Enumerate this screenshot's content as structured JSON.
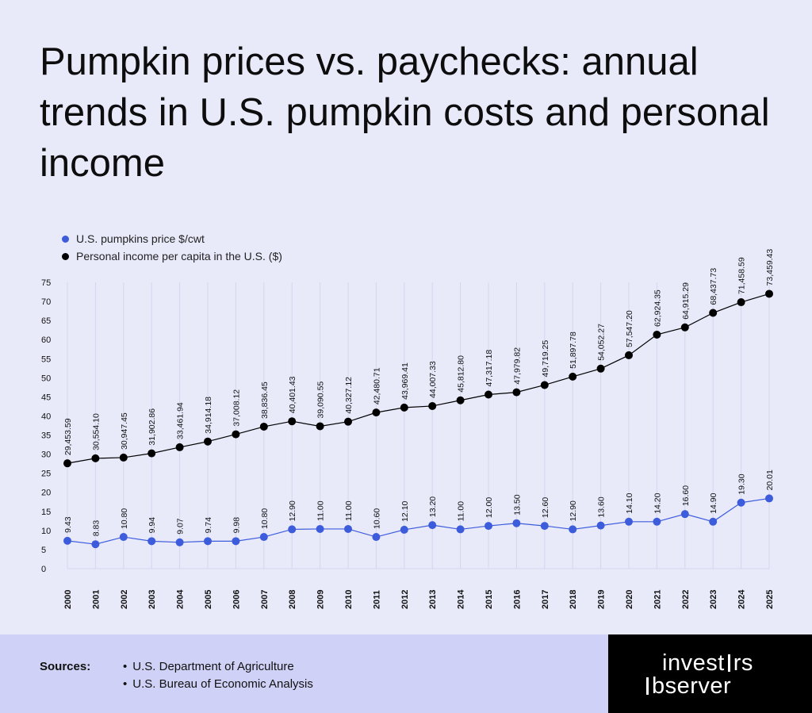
{
  "title": "Pumpkin prices vs. paychecks: annual trends in U.S. pumpkin costs and personal income",
  "colors": {
    "background": "#e8eafa",
    "pumpkin": "#3d5cdc",
    "income": "#000000",
    "footer": "#cfd2f6",
    "brand_bg": "#000000"
  },
  "footer": {
    "sources_label": "Sources:",
    "sources": [
      "U.S. Department of Agriculture",
      "U.S. Bureau of Economic Analysis"
    ]
  },
  "brand": {
    "line1_a": "invest",
    "line1_b": "rs",
    "line2_a": "",
    "line2_b": "bserver"
  },
  "chart_data": {
    "type": "line",
    "x": [
      "2000",
      "2001",
      "2002",
      "2003",
      "2004",
      "2005",
      "2006",
      "2007",
      "2008",
      "2009",
      "2010",
      "2011",
      "2012",
      "2013",
      "2014",
      "2015",
      "2016",
      "2017",
      "2018",
      "2019",
      "2020",
      "2021",
      "2022",
      "2023",
      "2024",
      "2025"
    ],
    "ylim": [
      0,
      75
    ],
    "yticks": [
      0,
      5,
      10,
      15,
      20,
      25,
      30,
      35,
      40,
      45,
      50,
      55,
      60,
      65,
      70,
      75
    ],
    "legend_position": "top-left",
    "grid": "vertical",
    "series": [
      {
        "name": "U.S. pumpkins price $/cwt",
        "color": "#3d5cdc",
        "y_plotted": [
          7.3,
          6.4,
          8.3,
          7.2,
          6.9,
          7.2,
          7.2,
          8.3,
          10.3,
          10.4,
          10.4,
          8.3,
          10.2,
          11.4,
          10.3,
          11.2,
          11.9,
          11.2,
          10.3,
          11.3,
          12.3,
          12.3,
          14.3,
          12.3,
          17.3,
          18.4
        ],
        "labels": [
          "9.43",
          "8.83",
          "10.80",
          "9.94",
          "9.07",
          "9.74",
          "9.98",
          "10.80",
          "12.90",
          "11.00",
          "11.00",
          "10.60",
          "12.10",
          "13.20",
          "11.00",
          "12.00",
          "13.50",
          "12.60",
          "12.90",
          "13.60",
          "14.10",
          "14.20",
          "16.60",
          "14.90",
          "19.30",
          "20.01"
        ]
      },
      {
        "name": "Personal income per capita in the U.S. ($)",
        "color": "#000000",
        "y_plotted": [
          27.6,
          28.9,
          29.1,
          30.2,
          31.8,
          33.3,
          35.2,
          37.2,
          38.6,
          37.3,
          38.5,
          40.9,
          42.2,
          42.6,
          44.1,
          45.6,
          46.2,
          48.1,
          50.3,
          52.4,
          55.9,
          61.3,
          63.2,
          67.0,
          69.8,
          72.0
        ],
        "labels": [
          "29,453.59",
          "30,554.10",
          "30,947.45",
          "31,902.86",
          "33,461.94",
          "34,914.18",
          "37,008.12",
          "38,836.45",
          "40,401.43",
          "39,090.55",
          "40,327.12",
          "42,480.71",
          "43,969.41",
          "44,007.33",
          "45,812.80",
          "47,317.18",
          "47,979.82",
          "49,719.25",
          "51,897.78",
          "54,052.27",
          "57,547.20",
          "62,924.35",
          "64,915.29",
          "68,437.73",
          "71,458.59",
          "73,459.43"
        ]
      }
    ]
  }
}
